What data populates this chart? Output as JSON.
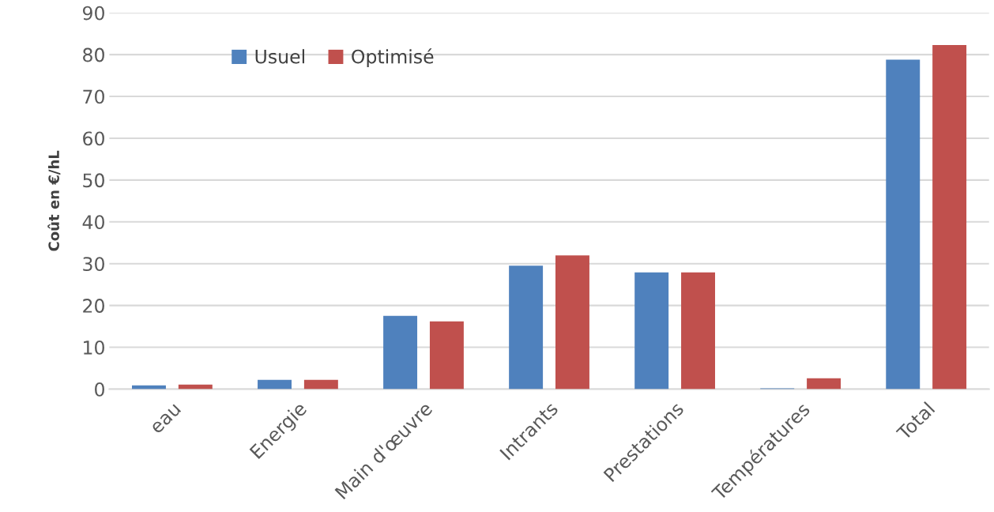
{
  "chart_data": {
    "type": "bar",
    "ylabel": "Coût en €/hL",
    "categories": [
      "eau",
      "Energie",
      "Main d'œuvre",
      "Intrants",
      "Prestations",
      "Températures",
      "Total"
    ],
    "series": [
      {
        "name": "Usuel",
        "color": "#4f81bd",
        "values": [
          0.9,
          2.2,
          17.5,
          29.5,
          27.9,
          0.2,
          78.8
        ]
      },
      {
        "name": "Optimisé",
        "color": "#c0504d",
        "values": [
          1.1,
          2.2,
          16.2,
          32.0,
          27.9,
          2.6,
          82.3
        ]
      }
    ],
    "ylim": [
      0,
      90
    ],
    "yticks": [
      0,
      10,
      20,
      30,
      40,
      50,
      60,
      70,
      80,
      90
    ],
    "grid": "y",
    "legend": "top left"
  }
}
